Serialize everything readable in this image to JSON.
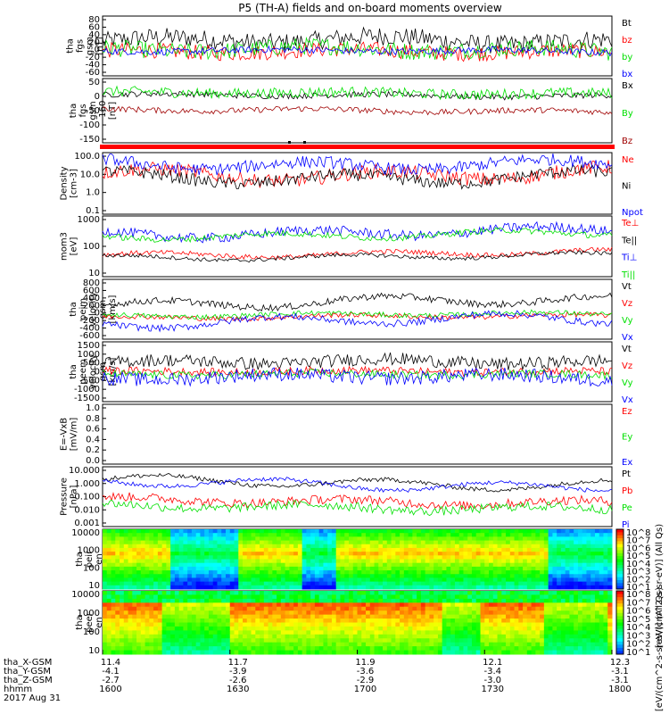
{
  "title": "P5 (TH-A) fields and on-board moments overview",
  "colors": {
    "black": "#000000",
    "red": "#ff0000",
    "green": "#00e000",
    "blue": "#0000ff",
    "darkred": "#a00000"
  },
  "chart_data": [
    {
      "type": "line",
      "id": "fgs",
      "ylabel": [
        "tha",
        "fgs",
        "gsm",
        "[nT]"
      ],
      "yticks": [
        "80",
        "60",
        "40",
        "20",
        "0",
        "-20",
        "-40",
        "-60"
      ],
      "ylim": [
        -60,
        80
      ],
      "scale": "linear",
      "series": [
        {
          "name": "Bt",
          "color": "black",
          "base": 20,
          "amp": 14,
          "noise": 22
        },
        {
          "name": "bz",
          "color": "red",
          "base": -5,
          "amp": 8,
          "noise": 18
        },
        {
          "name": "by",
          "color": "green",
          "base": 0,
          "amp": 10,
          "noise": 20
        },
        {
          "name": "bx",
          "color": "blue",
          "base": -2,
          "amp": 4,
          "noise": 8
        }
      ]
    },
    {
      "type": "line",
      "id": "fgs160",
      "ylabel": [
        "tha",
        "fgs",
        "gsm",
        "-160",
        "[nT]"
      ],
      "yticks": [
        "50",
        "0",
        "-50",
        "-100",
        "-150"
      ],
      "ylim": [
        -170,
        50
      ],
      "scale": "linear",
      "series": [
        {
          "name": "Bx",
          "color": "black",
          "base": -8,
          "amp": 6,
          "noise": 10
        },
        {
          "name": "By",
          "color": "green",
          "base": 0,
          "amp": 6,
          "noise": 18
        },
        {
          "name": "Bz",
          "color": "darkred",
          "base": -60,
          "amp": 8,
          "noise": 10
        }
      ]
    },
    {
      "type": "bar",
      "id": "flags",
      "ylabel": [],
      "yticks": [],
      "series": [
        {
          "name": "",
          "color": "red"
        }
      ]
    },
    {
      "type": "line",
      "id": "density",
      "ylabel": [
        "Density",
        "[cm-3]"
      ],
      "yticks": [
        "100.0",
        "10.0",
        "1.0",
        "0.1"
      ],
      "ylim": [
        0.1,
        100
      ],
      "scale": "log",
      "series": [
        {
          "name": "Ne",
          "color": "red",
          "base": 10,
          "amp": 0.4,
          "noise": 0.35
        },
        {
          "name": "Ni",
          "color": "black",
          "base": 7,
          "amp": 0.4,
          "noise": 0.3
        },
        {
          "name": "Npot",
          "color": "blue",
          "base": 30,
          "amp": 0.35,
          "noise": 0.3
        }
      ]
    },
    {
      "type": "line",
      "id": "temp",
      "ylabel": [
        "mom3",
        "[eV]"
      ],
      "yticks": [
        "1000",
        "100",
        "10"
      ],
      "ylim": [
        5,
        5000
      ],
      "scale": "log",
      "series": [
        {
          "name": "Te⊥",
          "color": "red",
          "base": 70,
          "amp": 0.2,
          "noise": 0.12
        },
        {
          "name": "Te||",
          "color": "black",
          "base": 50,
          "amp": 0.2,
          "noise": 0.1
        },
        {
          "name": "Ti⊥",
          "color": "blue",
          "base": 800,
          "amp": 0.3,
          "noise": 0.25
        },
        {
          "name": "Ti||",
          "color": "green",
          "base": 600,
          "amp": 0.25,
          "noise": 0.15
        }
      ]
    },
    {
      "type": "line",
      "id": "peimv",
      "ylabel": [
        "tha",
        "peim",
        "velocity",
        "gsm",
        "[km/s]"
      ],
      "yticks": [
        "800",
        "600",
        "400",
        "200",
        "0",
        "-200",
        "-400",
        "-600"
      ],
      "ylim": [
        -600,
        800
      ],
      "scale": "linear",
      "series": [
        {
          "name": "Vt",
          "color": "black",
          "base": 250,
          "amp": 180,
          "noise": 80
        },
        {
          "name": "Vz",
          "color": "red",
          "base": -80,
          "amp": 60,
          "noise": 60
        },
        {
          "name": "Vy",
          "color": "green",
          "base": -30,
          "amp": 60,
          "noise": 60
        },
        {
          "name": "Vx",
          "color": "blue",
          "base": -180,
          "amp": 180,
          "noise": 80
        }
      ]
    },
    {
      "type": "line",
      "id": "peemv",
      "ylabel": [
        "tha",
        "peem",
        "velocity",
        "gsm",
        "[km/s]"
      ],
      "yticks": [
        "1500",
        "1000",
        "500",
        "0",
        "-500",
        "-1000",
        "-1500"
      ],
      "ylim": [
        -1500,
        1500
      ],
      "scale": "linear",
      "series": [
        {
          "name": "Vt",
          "color": "black",
          "base": 450,
          "amp": 200,
          "noise": 320
        },
        {
          "name": "Vz",
          "color": "red",
          "base": 0,
          "amp": 80,
          "noise": 200
        },
        {
          "name": "Vy",
          "color": "green",
          "base": -150,
          "amp": 80,
          "noise": 200
        },
        {
          "name": "Vx",
          "color": "blue",
          "base": -300,
          "amp": 200,
          "noise": 350
        }
      ]
    },
    {
      "type": "line",
      "id": "efield",
      "ylabel": [
        "E=-VxB",
        "[mV/m]"
      ],
      "yticks": [
        "1.0",
        "0.8",
        "0.6",
        "0.4",
        "0.2",
        "0.0"
      ],
      "ylim": [
        0,
        1
      ],
      "scale": "linear",
      "series": [
        {
          "name": "Ez",
          "color": "red"
        },
        {
          "name": "Ey",
          "color": "green"
        },
        {
          "name": "Ex",
          "color": "blue"
        }
      ]
    },
    {
      "type": "line",
      "id": "pressure",
      "ylabel": [
        "Pressure",
        "[nPa]"
      ],
      "yticks": [
        "10.000",
        "1.000",
        "0.100",
        "0.010",
        "0.001"
      ],
      "ylim": [
        0.001,
        10
      ],
      "scale": "log",
      "series": [
        {
          "name": "Pt",
          "color": "black",
          "base": 0.9,
          "amp": 0.5,
          "noise": 0.15
        },
        {
          "name": "Pb",
          "color": "red",
          "base": 0.05,
          "amp": 0.3,
          "noise": 0.3
        },
        {
          "name": "Pe",
          "color": "green",
          "base": 0.02,
          "amp": 0.3,
          "noise": 0.3
        },
        {
          "name": "Pi",
          "color": "blue",
          "base": 0.7,
          "amp": 0.5,
          "noise": 0.15
        }
      ]
    },
    {
      "type": "heatmap",
      "id": "peir",
      "ylabel": [
        "tha",
        "peir",
        "en",
        "eflux",
        "eV",
        "(cm^2-s-",
        "sr-eV)"
      ],
      "yticks": [
        "10000",
        "1000",
        "100",
        "10"
      ],
      "colorbar_label": "[eV/(cm^2-s-sr-eV)] (All Qs)",
      "colorbar_ticks": [
        "10^8",
        "10^7",
        "10^6",
        "10^5",
        "10^4",
        "10^3",
        "10^2",
        "10^1"
      ]
    },
    {
      "type": "heatmap",
      "id": "peer",
      "ylabel": [
        "tha",
        "peer",
        "en",
        "eflux",
        "eV",
        "(cm^2-s-",
        "sr-eV)"
      ],
      "yticks": [
        "10000",
        "1000",
        "100",
        "10"
      ],
      "colorbar_label": "[eV/(cm^2-s-sr-eV)] (All Qs)",
      "colorbar_ticks": [
        "10^8",
        "10^7",
        "10^6",
        "10^5",
        "10^4",
        "10^3",
        "10^2",
        "10^1"
      ]
    }
  ],
  "x_axis": {
    "row_labels": [
      "tha_X-GSM",
      "tha_Y-GSM",
      "tha_Z-GSM",
      "hhmm",
      "2017 Aug 31"
    ],
    "columns": [
      [
        "11.4",
        "-4.1",
        "-2.7",
        "1600"
      ],
      [
        "11.7",
        "-3.9",
        "-2.6",
        "1630"
      ],
      [
        "11.9",
        "-3.6",
        "-2.9",
        "1700"
      ],
      [
        "12.1",
        "-3.4",
        "-3.0",
        "1730"
      ],
      [
        "12.3",
        "-3.1",
        "-3.1",
        "1800"
      ]
    ]
  }
}
